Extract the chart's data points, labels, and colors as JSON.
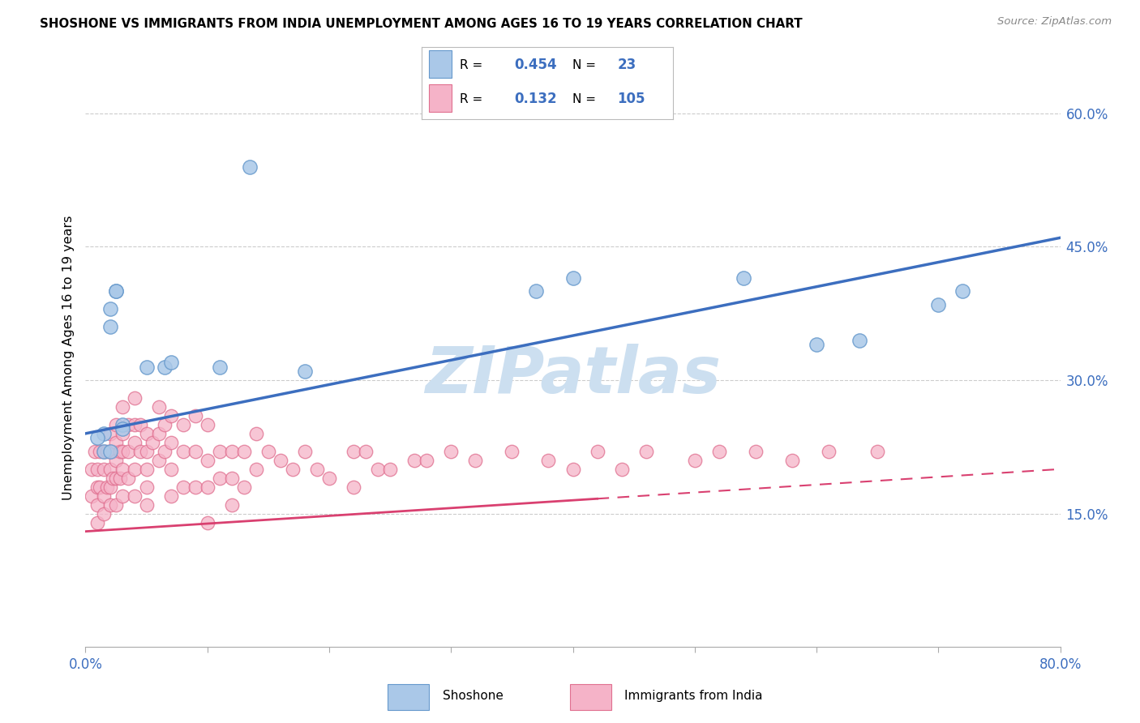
{
  "title": "SHOSHONE VS IMMIGRANTS FROM INDIA UNEMPLOYMENT AMONG AGES 16 TO 19 YEARS CORRELATION CHART",
  "source": "Source: ZipAtlas.com",
  "ylabel": "Unemployment Among Ages 16 to 19 years",
  "xlim": [
    0.0,
    0.8
  ],
  "ylim": [
    0.0,
    0.65
  ],
  "xticks": [
    0.0,
    0.1,
    0.2,
    0.3,
    0.4,
    0.5,
    0.6,
    0.7,
    0.8
  ],
  "xticklabels": [
    "0.0%",
    "",
    "",
    "",
    "",
    "",
    "",
    "",
    "80.0%"
  ],
  "yticks_right": [
    0.15,
    0.3,
    0.45,
    0.6
  ],
  "ytick_right_labels": [
    "15.0%",
    "30.0%",
    "45.0%",
    "60.0%"
  ],
  "shoshone_color": "#aac8e8",
  "india_color": "#f5b3c8",
  "shoshone_edge": "#6699cc",
  "india_edge": "#e07090",
  "trend_shoshone_color": "#3c6ebf",
  "trend_india_color": "#d94070",
  "R_shoshone": "0.454",
  "N_shoshone": "23",
  "R_india": "0.132",
  "N_india": "105",
  "watermark_text": "ZIPatlas",
  "watermark_color": "#ccdff0",
  "legend_label1": "Shoshone",
  "legend_label2": "Immigrants from India",
  "shoshone_x": [
    0.015,
    0.015,
    0.02,
    0.02,
    0.02,
    0.025,
    0.025,
    0.03,
    0.03,
    0.01,
    0.05,
    0.065,
    0.07,
    0.11,
    0.135,
    0.18,
    0.37,
    0.4,
    0.54,
    0.6,
    0.635,
    0.7,
    0.72
  ],
  "shoshone_y": [
    0.24,
    0.22,
    0.38,
    0.36,
    0.22,
    0.4,
    0.4,
    0.25,
    0.245,
    0.235,
    0.315,
    0.315,
    0.32,
    0.315,
    0.54,
    0.31,
    0.4,
    0.415,
    0.415,
    0.34,
    0.345,
    0.385,
    0.4
  ],
  "india_x": [
    0.005,
    0.005,
    0.008,
    0.01,
    0.01,
    0.01,
    0.01,
    0.012,
    0.012,
    0.015,
    0.015,
    0.015,
    0.015,
    0.018,
    0.018,
    0.02,
    0.02,
    0.02,
    0.02,
    0.02,
    0.022,
    0.022,
    0.025,
    0.025,
    0.025,
    0.025,
    0.025,
    0.028,
    0.028,
    0.03,
    0.03,
    0.03,
    0.03,
    0.03,
    0.035,
    0.035,
    0.035,
    0.04,
    0.04,
    0.04,
    0.04,
    0.04,
    0.045,
    0.045,
    0.05,
    0.05,
    0.05,
    0.05,
    0.05,
    0.055,
    0.06,
    0.06,
    0.06,
    0.065,
    0.065,
    0.07,
    0.07,
    0.07,
    0.07,
    0.08,
    0.08,
    0.08,
    0.09,
    0.09,
    0.09,
    0.1,
    0.1,
    0.1,
    0.1,
    0.11,
    0.11,
    0.12,
    0.12,
    0.12,
    0.13,
    0.13,
    0.14,
    0.14,
    0.15,
    0.16,
    0.17,
    0.18,
    0.19,
    0.2,
    0.22,
    0.22,
    0.23,
    0.24,
    0.25,
    0.27,
    0.28,
    0.3,
    0.32,
    0.35,
    0.38,
    0.4,
    0.42,
    0.44,
    0.46,
    0.5,
    0.52,
    0.55,
    0.58,
    0.61,
    0.65
  ],
  "india_y": [
    0.2,
    0.17,
    0.22,
    0.2,
    0.18,
    0.16,
    0.14,
    0.22,
    0.18,
    0.22,
    0.2,
    0.17,
    0.15,
    0.22,
    0.18,
    0.24,
    0.22,
    0.2,
    0.18,
    0.16,
    0.22,
    0.19,
    0.25,
    0.23,
    0.21,
    0.19,
    0.16,
    0.22,
    0.19,
    0.27,
    0.24,
    0.22,
    0.2,
    0.17,
    0.25,
    0.22,
    0.19,
    0.28,
    0.25,
    0.23,
    0.2,
    0.17,
    0.25,
    0.22,
    0.24,
    0.22,
    0.2,
    0.18,
    0.16,
    0.23,
    0.27,
    0.24,
    0.21,
    0.25,
    0.22,
    0.26,
    0.23,
    0.2,
    0.17,
    0.25,
    0.22,
    0.18,
    0.26,
    0.22,
    0.18,
    0.25,
    0.21,
    0.18,
    0.14,
    0.22,
    0.19,
    0.22,
    0.19,
    0.16,
    0.22,
    0.18,
    0.24,
    0.2,
    0.22,
    0.21,
    0.2,
    0.22,
    0.2,
    0.19,
    0.22,
    0.18,
    0.22,
    0.2,
    0.2,
    0.21,
    0.21,
    0.22,
    0.21,
    0.22,
    0.21,
    0.2,
    0.22,
    0.2,
    0.22,
    0.21,
    0.22,
    0.22,
    0.21,
    0.22,
    0.22
  ],
  "shoshone_trend_x0": 0.0,
  "shoshone_trend_x1": 0.8,
  "india_trend_x0": 0.0,
  "india_trend_solid_end": 0.42,
  "india_trend_x1": 0.8
}
